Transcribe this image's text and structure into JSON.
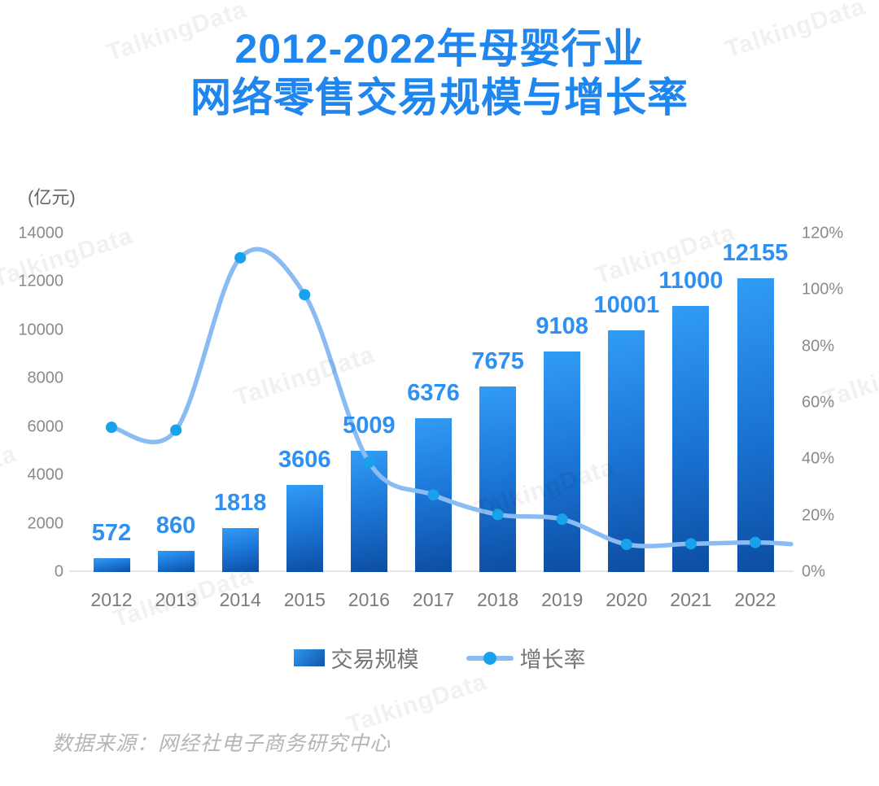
{
  "title": {
    "line1": "2012-2022年母婴行业",
    "line2": "网络零售交易规模与增长率"
  },
  "watermark": {
    "text": "TalkingData"
  },
  "source_note": "数据来源：网经社电子商务研究中心",
  "chart_data": {
    "type": "bar",
    "subtype": "combo-bar-line-dual-axis",
    "title": "2012-2022年母婴行业网络零售交易规模与增长率",
    "categories": [
      "2012",
      "2013",
      "2014",
      "2015",
      "2016",
      "2017",
      "2018",
      "2019",
      "2020",
      "2021",
      "2022"
    ],
    "series": [
      {
        "name": "交易规模",
        "type": "bar",
        "axis": "left",
        "unit": "亿元",
        "values": [
          572,
          860,
          1818,
          3606,
          5009,
          6376,
          7675,
          9108,
          10001,
          11000,
          12155
        ]
      },
      {
        "name": "增长率",
        "type": "line",
        "axis": "right",
        "unit": "%",
        "values": [
          51.3,
          50.3,
          111.4,
          98.3,
          38.9,
          27.3,
          20.4,
          18.7,
          9.8,
          10.0,
          10.5
        ]
      }
    ],
    "left_axis": {
      "title": "(亿元)",
      "min": 0,
      "max": 14000,
      "step": 2000,
      "ticks": [
        "0",
        "2000",
        "4000",
        "6000",
        "8000",
        "10000",
        "12000",
        "14000"
      ]
    },
    "right_axis": {
      "min": 0,
      "max": 120,
      "step": 20,
      "ticks": [
        "0%",
        "20%",
        "40%",
        "60%",
        "80%",
        "100%",
        "120%"
      ]
    },
    "legend": {
      "position": "bottom",
      "items": [
        {
          "label": "交易规模",
          "marker": "bar"
        },
        {
          "label": "增长率",
          "marker": "line-dot"
        }
      ]
    },
    "grid": false,
    "value_labels_shown": true,
    "colors": {
      "title": "#1E86EE",
      "bar_gradient_top": "#319CF5",
      "bar_gradient_bottom": "#0C4DA2",
      "line": "#8ABCF3",
      "marker": "#18A2EC",
      "value_label": "#2E90F2",
      "axis_text": "#8A8A8A",
      "source_text": "#B5B5B5",
      "watermark": "#EDEDED"
    }
  }
}
